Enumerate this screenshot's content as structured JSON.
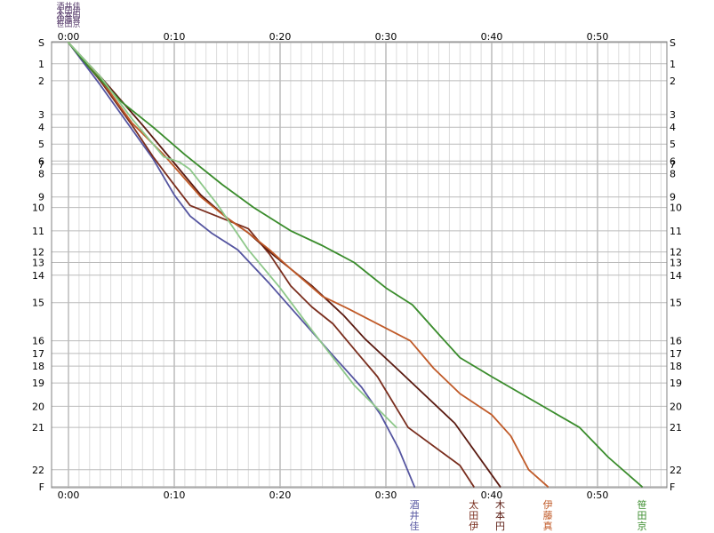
{
  "chart_data": {
    "type": "line",
    "title": "",
    "xlabel": "",
    "ylabel": "",
    "x_unit": "elapsed time (h:mm)",
    "xlim_minutes": [
      0,
      57
    ],
    "x_ticks": [
      "0:00",
      "0:10",
      "0:20",
      "0:30",
      "0:40",
      "0:50"
    ],
    "x_tick_minutes": [
      0,
      10,
      20,
      30,
      40,
      50
    ],
    "grid": true,
    "y_categories": [
      "S",
      "1",
      "2",
      "3",
      "4",
      "5",
      "6",
      "7",
      "8",
      "9",
      "10",
      "11",
      "12",
      "13",
      "14",
      "15",
      "16",
      "17",
      "18",
      "19",
      "20",
      "21",
      "22",
      "F"
    ],
    "y_cumulative_distance": [
      0,
      1.0,
      1.8,
      3.4,
      4.0,
      4.8,
      5.6,
      5.75,
      6.2,
      7.3,
      7.8,
      8.9,
      9.9,
      10.4,
      11.0,
      12.3,
      14.1,
      14.7,
      15.3,
      16.1,
      17.2,
      18.2,
      20.2,
      21.0
    ],
    "top_labels": [
      "酒井佳",
      "太田伊",
      "木本円",
      "伊藤真",
      "笹田京"
    ],
    "series": [
      {
        "name": "酒井佳",
        "color": "#5555a0",
        "x_minutes": [
          0,
          3,
          6,
          8,
          10,
          11.5,
          13.5,
          16,
          19,
          22,
          25,
          27.7,
          29.5,
          31.2,
          32.7
        ],
        "y_distance": [
          0,
          2.0,
          4.1,
          5.5,
          7.2,
          8.2,
          9.0,
          9.8,
          11.4,
          13.1,
          14.8,
          16.3,
          17.6,
          19.2,
          21.0
        ]
      },
      {
        "name": "太田伊",
        "color": "#7a2e1e",
        "x_minutes": [
          0,
          3,
          6,
          8,
          9.8,
          11.5,
          14,
          17,
          19,
          21,
          23,
          25,
          27.5,
          29.2,
          32.1,
          37,
          38.3
        ],
        "y_distance": [
          0,
          1.8,
          3.9,
          5.4,
          6.6,
          7.7,
          8.2,
          8.8,
          10.0,
          11.5,
          12.5,
          13.3,
          14.8,
          15.8,
          18.2,
          20.0,
          21.0
        ]
      },
      {
        "name": "木本円",
        "color": "#5a1a10",
        "x_minutes": [
          0,
          3,
          7,
          9.5,
          12.5,
          15,
          17,
          19.5,
          23,
          26,
          28,
          31,
          36.5,
          40.8
        ],
        "y_distance": [
          0,
          1.6,
          3.9,
          5.4,
          7.2,
          8.3,
          9.0,
          10.1,
          11.5,
          12.9,
          14.0,
          15.4,
          18.0,
          21.0
        ]
      },
      {
        "name": "伊藤真",
        "color": "#c05a28",
        "x_minutes": [
          0,
          3,
          6,
          9,
          12.5,
          15,
          17,
          19,
          21,
          24,
          26.5,
          32.3,
          34.5,
          37,
          40,
          41.8,
          43.5,
          45.3
        ],
        "y_distance": [
          0,
          1.7,
          3.8,
          5.3,
          7.3,
          8.3,
          9.0,
          9.8,
          10.7,
          12.0,
          12.6,
          14.1,
          15.4,
          16.6,
          17.6,
          18.6,
          20.2,
          21.0
        ]
      },
      {
        "name": "笹田京",
        "color": "#3a8c2c",
        "x_minutes": [
          0,
          2,
          5,
          8,
          11,
          14.5,
          17.5,
          21,
          24,
          27,
          30,
          32.5,
          35,
          37,
          40,
          44.5,
          48.3,
          51,
          54.2
        ],
        "y_distance": [
          0,
          1.2,
          2.8,
          4.0,
          5.3,
          6.7,
          7.8,
          8.9,
          9.6,
          10.4,
          11.6,
          12.4,
          13.8,
          14.9,
          15.8,
          17.1,
          18.2,
          19.6,
          21.0
        ]
      },
      {
        "name": "",
        "color": "#8ec88a",
        "x_minutes": [
          0,
          3,
          6,
          9,
          10.5,
          11.5,
          14,
          17,
          20,
          23,
          27,
          31
        ],
        "y_distance": [
          0,
          1.6,
          3.6,
          5.4,
          5.65,
          6.0,
          7.6,
          9.8,
          11.6,
          13.6,
          16.2,
          18.2
        ]
      }
    ]
  }
}
